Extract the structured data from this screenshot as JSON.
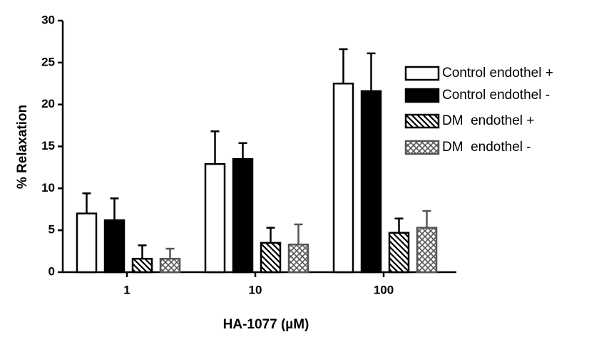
{
  "chart_data": {
    "type": "bar",
    "xlabel": "HA-1077 (µM)",
    "ylabel": "% Relaxation",
    "categories": [
      "1",
      "10",
      "100"
    ],
    "series": [
      {
        "name": "Control endothel +",
        "color": "#ffffff",
        "pattern": "solid",
        "values": [
          7.0,
          12.9,
          22.5
        ],
        "errors": [
          2.4,
          3.9,
          4.1
        ]
      },
      {
        "name": "Control endothel -",
        "color": "#000000",
        "pattern": "solid",
        "values": [
          6.2,
          13.5,
          21.6
        ],
        "errors": [
          2.6,
          1.9,
          4.5
        ]
      },
      {
        "name": "DM  endothel +",
        "color": "#000000",
        "pattern": "hatch",
        "values": [
          1.6,
          3.5,
          4.7
        ],
        "errors": [
          1.6,
          1.8,
          1.7
        ]
      },
      {
        "name": "DM  endothel -",
        "color": "#555555",
        "pattern": "crosshatch",
        "values": [
          1.6,
          3.3,
          5.3
        ],
        "errors": [
          1.2,
          2.4,
          2.0
        ]
      }
    ],
    "ylim": [
      0,
      30
    ],
    "yticks": [
      0,
      5,
      10,
      15,
      20,
      25,
      30
    ]
  }
}
